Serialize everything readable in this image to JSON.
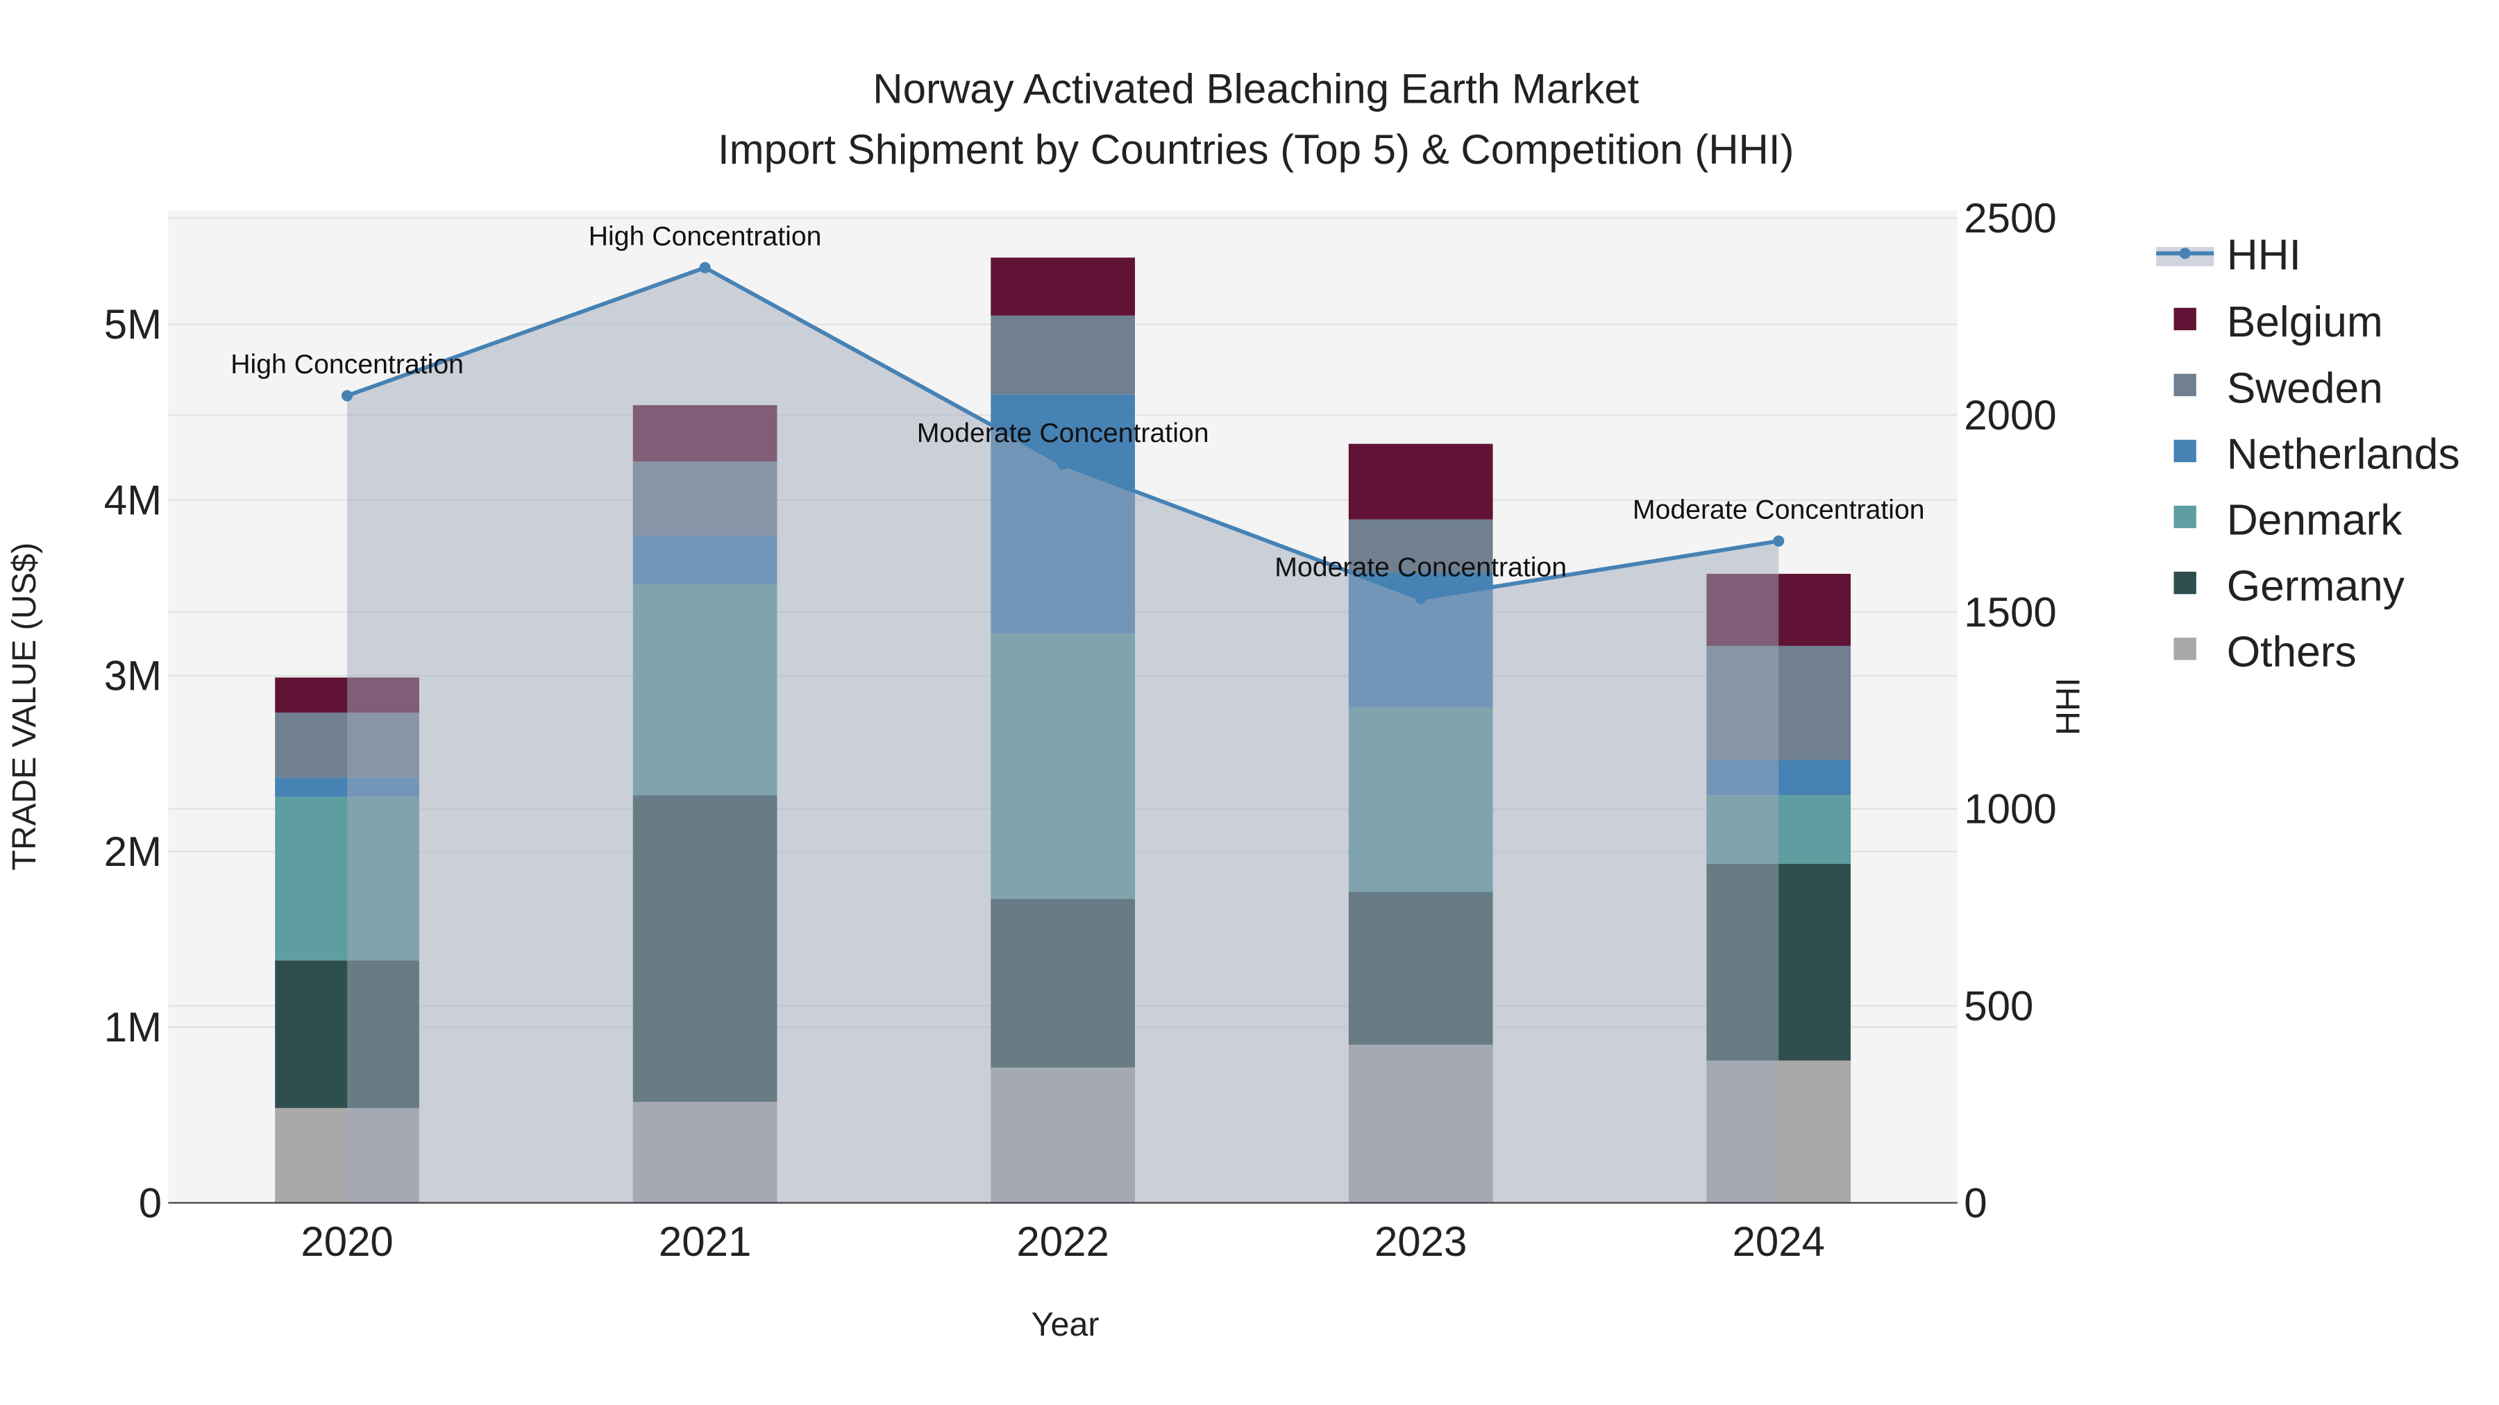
{
  "chart_data": {
    "type": "bar",
    "title_line1": "Norway Activated Bleaching Earth Market",
    "title_line2": "Import Shipment by Countries (Top 5) & Competition (HHI)",
    "xlabel": "Year",
    "ylabel": "TRADE VALUE (US$)",
    "y2label": "HHI",
    "categories": [
      "2020",
      "2021",
      "2022",
      "2023",
      "2024"
    ],
    "ylim": [
      0,
      5650000
    ],
    "y2lim": [
      0,
      2520
    ],
    "yticks": [
      0,
      1000000,
      2000000,
      3000000,
      4000000,
      5000000
    ],
    "ytick_labels": [
      "0",
      "1M",
      "2M",
      "3M",
      "4M",
      "5M"
    ],
    "y2ticks": [
      0,
      500,
      1000,
      1500,
      2000,
      2500
    ],
    "y2tick_labels": [
      "0",
      "500",
      "1000",
      "1500",
      "2000",
      "2500"
    ],
    "grid": true,
    "legend_position": "right",
    "series": [
      {
        "name": "Others",
        "color": "#a9a9a9",
        "values": [
          540000,
          575000,
          770000,
          900000,
          810000
        ]
      },
      {
        "name": "Germany",
        "color": "#2f4f4f",
        "values": [
          840000,
          1745000,
          960000,
          870000,
          1120000
        ]
      },
      {
        "name": "Denmark",
        "color": "#5f9ea0",
        "values": [
          930000,
          1200000,
          1510000,
          1050000,
          390000
        ]
      },
      {
        "name": "Netherlands",
        "color": "#4682b4",
        "values": [
          110000,
          280000,
          1360000,
          770000,
          200000
        ]
      },
      {
        "name": "Sweden",
        "color": "#708090",
        "values": [
          370000,
          420000,
          450000,
          300000,
          650000
        ]
      },
      {
        "name": "Belgium",
        "color": "#611335",
        "values": [
          200000,
          320000,
          330000,
          430000,
          410000
        ]
      }
    ],
    "hhi": {
      "name": "HHI",
      "color": "#4682b4",
      "values": [
        2049,
        2374,
        1875,
        1534,
        1680
      ],
      "annotations": [
        "High Concentration",
        "High Concentration",
        "Moderate Concentration",
        "Moderate Concentration",
        "Moderate Concentration"
      ]
    }
  }
}
